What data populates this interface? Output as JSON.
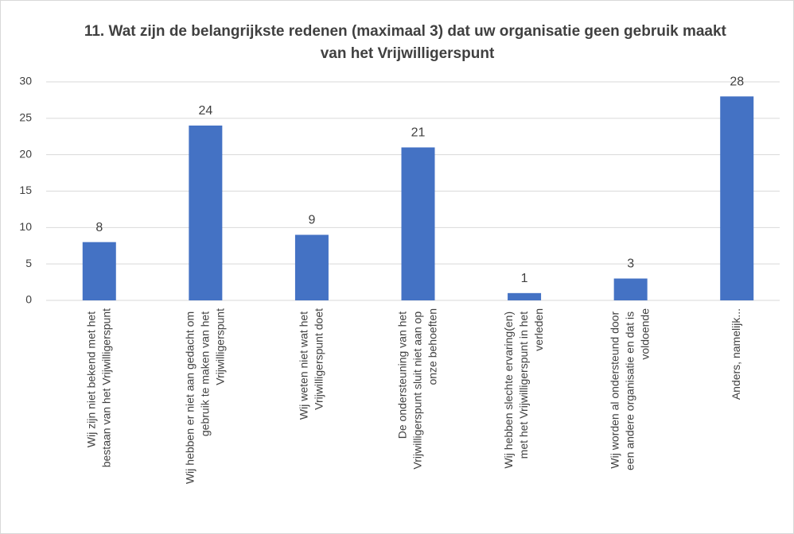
{
  "chart_data": {
    "type": "bar",
    "title": "11. Wat zijn de belangrijkste redenen (maximaal 3) dat uw organisatie geen gebruik maakt van het Vrijwilligerspunt",
    "categories": [
      "Wij zijn niet bekend met het bestaan van het Vrijwilligerspunt",
      "Wij hebben er niet aan gedacht om gebruik te maken van het Vrijwilligerspunt",
      "Wij weten niet wat het Vrijwilligerspunt doet",
      "De ondersteuning van het Vrijwilligerspunt sluit niet aan op onze behoeften",
      "Wij hebben slechte ervaring(en) met het Vrijwilligerspunt in het verleden",
      "Wij worden al ondersteund door een andere organisatie en dat is voldoende",
      "Anders, namelijk..."
    ],
    "values": [
      8,
      24,
      9,
      21,
      1,
      3,
      28
    ],
    "color": "#4472c4",
    "ylim": [
      0,
      30
    ],
    "yticks": [
      0,
      5,
      10,
      15,
      20,
      25,
      30
    ],
    "grid": true
  }
}
